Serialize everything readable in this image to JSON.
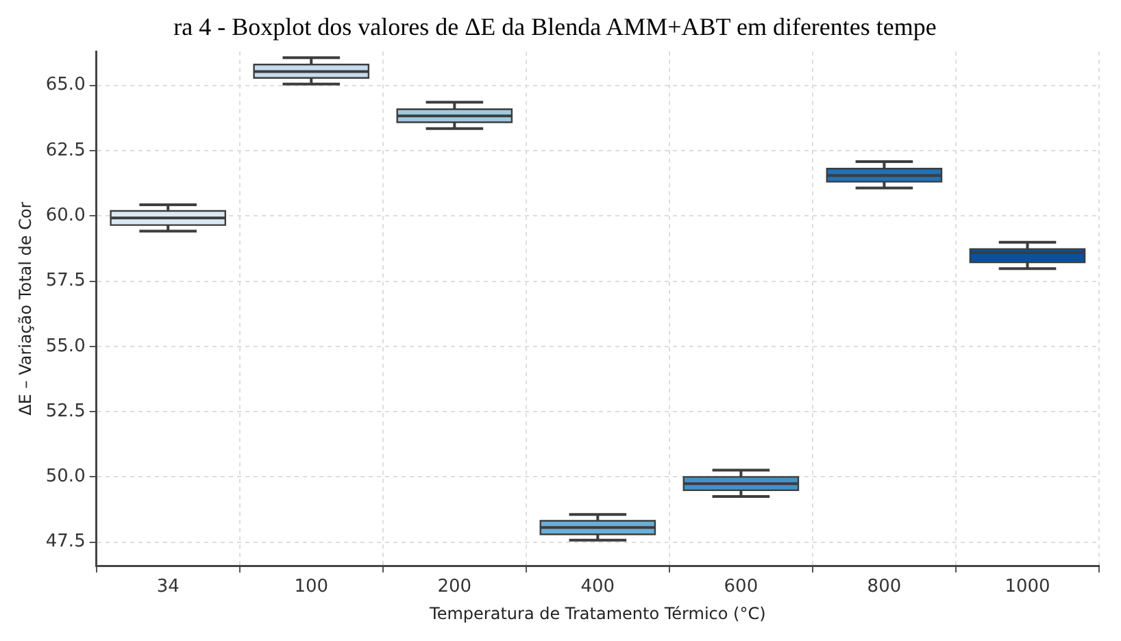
{
  "chart_data": {
    "type": "box",
    "title": "ra 4 - Boxplot dos valores de ΔE da Blenda AMM+ABT em diferentes tempe",
    "xlabel": "Temperatura de Tratamento Térmico (°C)",
    "ylabel": "ΔE – Variação Total de Cor",
    "categories": [
      "34",
      "100",
      "200",
      "400",
      "600",
      "800",
      "1000"
    ],
    "colors": [
      "#dbe9f6",
      "#c6dbef",
      "#9ecae1",
      "#6baed6",
      "#4292c6",
      "#2171b5",
      "#08519c"
    ],
    "boxes": [
      {
        "low": 59.42,
        "q1": 59.65,
        "median": 59.92,
        "q3": 60.19,
        "high": 60.43
      },
      {
        "low": 65.05,
        "q1": 65.29,
        "median": 65.53,
        "q3": 65.8,
        "high": 66.06
      },
      {
        "low": 63.35,
        "q1": 63.59,
        "median": 63.83,
        "q3": 64.09,
        "high": 64.36
      },
      {
        "low": 47.58,
        "q1": 47.8,
        "median": 48.06,
        "q3": 48.32,
        "high": 48.56
      },
      {
        "low": 49.25,
        "q1": 49.49,
        "median": 49.74,
        "q3": 50.0,
        "high": 50.26
      },
      {
        "low": 61.07,
        "q1": 61.31,
        "median": 61.55,
        "q3": 61.81,
        "high": 62.08
      },
      {
        "low": 57.98,
        "q1": 58.22,
        "median": 58.59,
        "q3": 58.73,
        "high": 58.99
      }
    ],
    "ylim": [
      46.6,
      66.3
    ],
    "yticks": [
      47.5,
      {
        "value": 50,
        "label": "50.0"
      },
      52.5,
      {
        "value": 55,
        "label": "55.0"
      },
      57.5,
      {
        "value": 60,
        "label": "60.0"
      },
      62.5,
      {
        "value": 65,
        "label": "65.0"
      }
    ],
    "grid": true,
    "legend": false
  }
}
